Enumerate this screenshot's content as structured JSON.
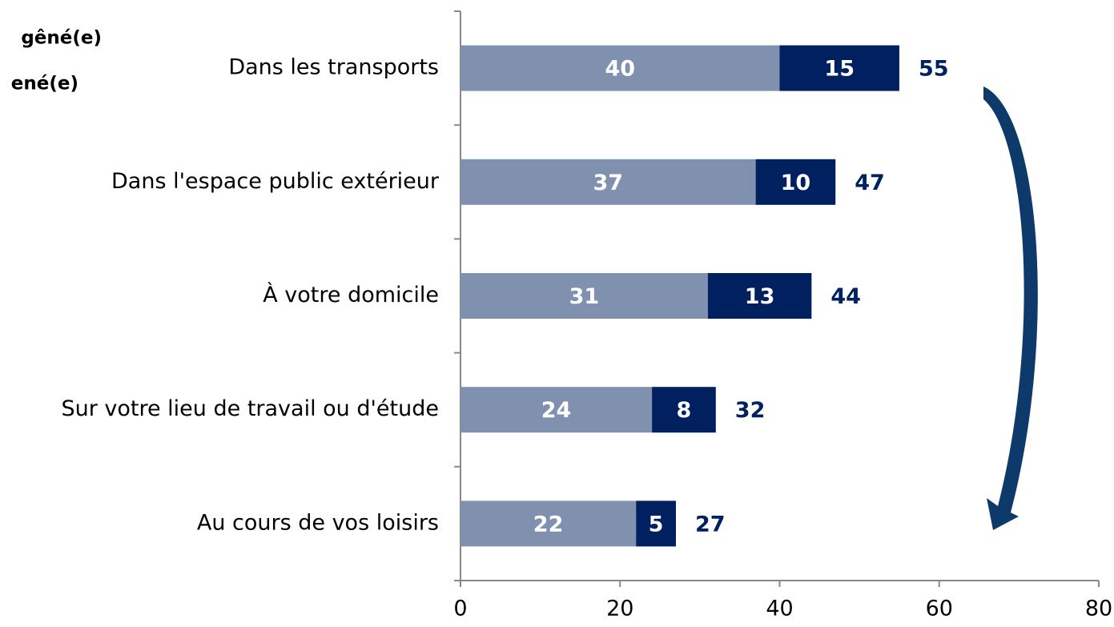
{
  "chart_data": {
    "type": "stacked-bar-horizontal",
    "categories": [
      "Dans les transports",
      "Dans l'espace public extérieur",
      "À votre domicile",
      "Sur votre lieu de travail ou d'étude",
      "Au cours de vos loisirs"
    ],
    "series": [
      {
        "name": "gêné(e)",
        "color": "#8091b0",
        "values": [
          40,
          37,
          31,
          24,
          22
        ]
      },
      {
        "name": "ené(e)",
        "color": "#002060",
        "values": [
          15,
          10,
          13,
          8,
          5
        ]
      }
    ],
    "totals": [
      55,
      47,
      44,
      32,
      27
    ],
    "xlim": [
      0,
      80
    ],
    "xticks": [
      0,
      20,
      40,
      60,
      80
    ]
  }
}
